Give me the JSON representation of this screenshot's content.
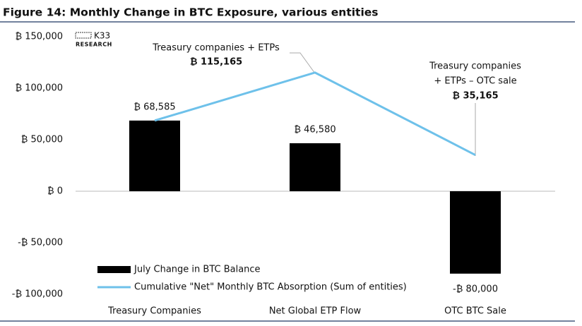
{
  "chart_data": {
    "type": "bar",
    "title": "Figure 14: Monthly Change in BTC Exposure, various entities",
    "logo": {
      "name": "K33",
      "subtitle": "RESEARCH"
    },
    "categories": [
      "Treasury Companies",
      "Net Global ETP Flow",
      "OTC BTC Sale"
    ],
    "series": [
      {
        "name": "July Change in BTC Balance",
        "type": "bar",
        "color": "#000000",
        "values": [
          68585,
          46580,
          -80000
        ],
        "value_labels": [
          "₿ 68,585",
          "₿ 46,580",
          "-₿ 80,000"
        ]
      },
      {
        "name": "Cumulative \"Net\" Monthly BTC Absorption (Sum of entities)",
        "type": "line",
        "color": "#6ec1ea",
        "values": [
          68585,
          115165,
          35165
        ],
        "value_labels": [
          null,
          "₿ 115,165",
          "₿ 35,165"
        ]
      }
    ],
    "annotations": [
      "Treasury companies + ETPs",
      "Treasury companies",
      "+ ETPs – OTC sale"
    ],
    "ylim": [
      -100000,
      150000
    ],
    "yticks": [
      {
        "value": -100000,
        "label": "-₿ 100,000"
      },
      {
        "value": -50000,
        "label": "-₿ 50,000"
      },
      {
        "value": 0,
        "label": "₿ 0"
      },
      {
        "value": 50000,
        "label": "₿ 50,000"
      },
      {
        "value": 100000,
        "label": "₿ 100,000"
      },
      {
        "value": 150000,
        "label": "₿ 150,000"
      }
    ],
    "grid": false,
    "legend": "lower left"
  }
}
